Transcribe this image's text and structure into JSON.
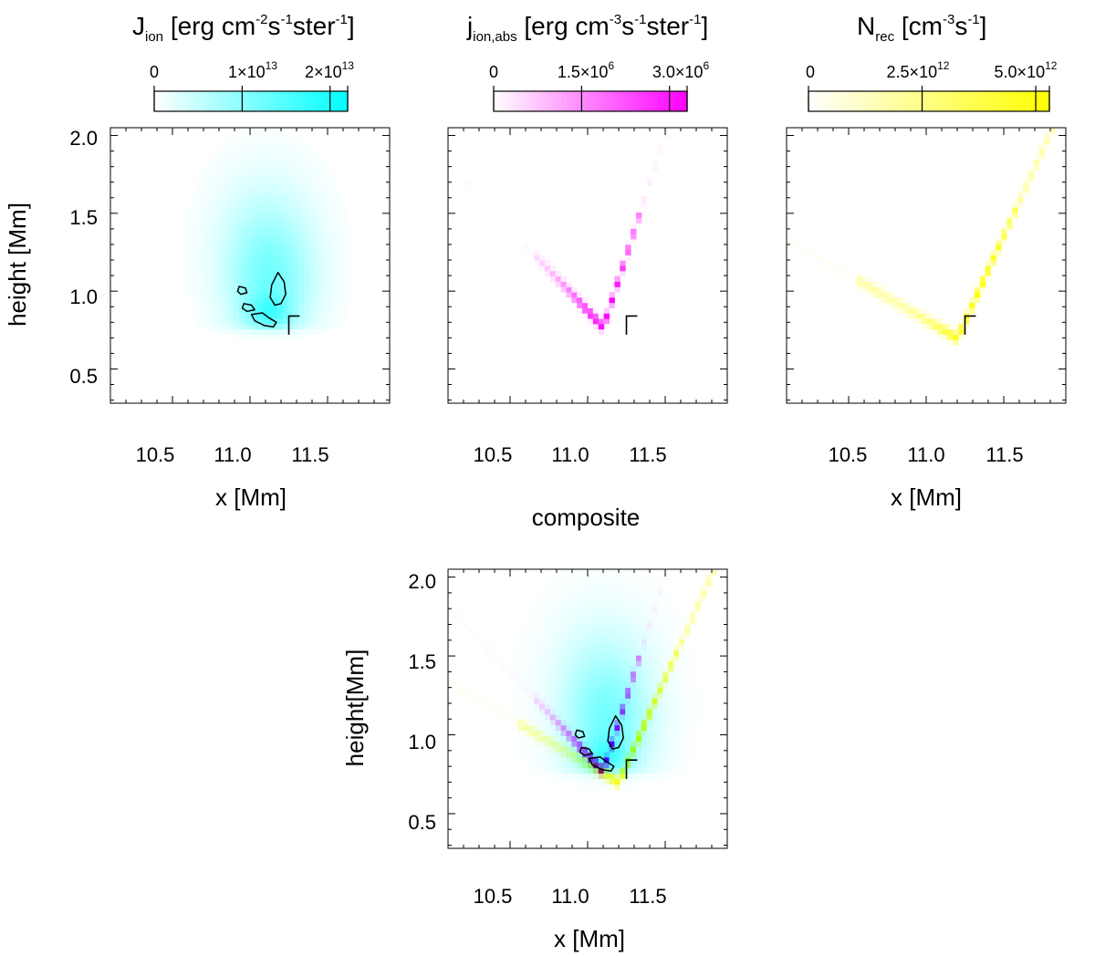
{
  "chart_data": [
    {
      "type": "heatmap",
      "id": "jion",
      "title": "J_ion [erg cm^-2 s^-1 ster^-1]",
      "title_parts": {
        "main": "J",
        "sub": "ion",
        "rest": "[erg cm",
        "e1": "-2",
        "s": "s",
        "e2": "-1",
        "ster": "ster",
        "e3": "-1",
        "close": "]"
      },
      "colormap": "cyan",
      "color": "#00ffff",
      "colorbar": {
        "vmin": 0,
        "vmax": 22000000000000.0,
        "ticks": [
          0,
          10000000000000.0,
          20000000000000.0
        ],
        "tick_labels": [
          {
            "text": "0",
            "exp": ""
          },
          {
            "text": "1×10",
            "exp": "13"
          },
          {
            "text": "2×10",
            "exp": "13"
          }
        ]
      },
      "xlabel": "x [Mm]",
      "ylabel": "height [Mm]",
      "xlim": [
        10.1,
        11.9
      ],
      "ylim": [
        0.28,
        2.05
      ],
      "xticks": [
        "10.5",
        "11.0",
        "11.5"
      ],
      "yticks": [
        "0.5",
        "1.0",
        "1.5",
        "2.0"
      ],
      "show_xlabel": true,
      "show_ylabel": true,
      "cells_summary": "diffuse cloud centered near x=11.1 Mm, height 0.8–1.8 Mm, peak ~1.5e13 near x=11.15, height 0.85",
      "contours": [
        {
          "name": "contour-upper",
          "points": [
            [
              11.18,
              1.12
            ],
            [
              11.22,
              1.06
            ],
            [
              11.23,
              0.98
            ],
            [
              11.2,
              0.92
            ],
            [
              11.16,
              0.91
            ],
            [
              11.13,
              0.96
            ],
            [
              11.14,
              1.04
            ]
          ]
        },
        {
          "name": "contour-small",
          "points": [
            [
              10.93,
              1.03
            ],
            [
              10.97,
              1.02
            ],
            [
              10.98,
              0.99
            ],
            [
              10.94,
              0.98
            ],
            [
              10.92,
              1.0
            ]
          ]
        },
        {
          "name": "contour-mid",
          "points": [
            [
              10.96,
              0.92
            ],
            [
              11.01,
              0.91
            ],
            [
              11.03,
              0.88
            ],
            [
              10.98,
              0.87
            ],
            [
              10.95,
              0.89
            ]
          ]
        },
        {
          "name": "contour-lower",
          "points": [
            [
              11.01,
              0.85
            ],
            [
              11.08,
              0.86
            ],
            [
              11.12,
              0.83
            ],
            [
              11.17,
              0.8
            ],
            [
              11.15,
              0.77
            ],
            [
              11.09,
              0.78
            ],
            [
              11.03,
              0.81
            ]
          ]
        }
      ],
      "marker": {
        "x": 11.25,
        "y": 0.84,
        "dx": 0.07,
        "dy": -0.12
      }
    },
    {
      "type": "heatmap",
      "id": "jabs",
      "title": "j_ion,abs [erg cm^-3 s^-1 ster^-1]",
      "title_parts": {
        "main": "j",
        "sub": "ion,abs",
        "rest": "[erg cm",
        "e1": "-3",
        "s": "s",
        "e2": "-1",
        "ster": "ster",
        "e3": "-1",
        "close": "]"
      },
      "colormap": "magenta",
      "color": "#ff00ff",
      "colorbar": {
        "vmin": 0,
        "vmax": 3300000.0,
        "ticks": [
          0,
          1500000.0,
          3000000.0
        ],
        "tick_labels": [
          {
            "text": "0",
            "exp": ""
          },
          {
            "text": "1.5×10",
            "exp": "6"
          },
          {
            "text": "3.0×10",
            "exp": "6"
          }
        ]
      },
      "xlabel": "",
      "ylabel": "",
      "xlim": [
        10.1,
        11.9
      ],
      "ylim": [
        0.28,
        2.05
      ],
      "xticks": [
        "10.5",
        "11.0",
        "11.5"
      ],
      "yticks": [
        "0.5",
        "1.0",
        "1.5",
        "2.0"
      ],
      "show_xlabel": false,
      "show_ylabel": false,
      "cells_summary": "U-shaped band from (10.7,1.25) down to (11.1,0.77) and up to (11.35,1.45), peak ~3e6 at x≈11.1, height≈0.78",
      "contours": [],
      "marker": {
        "x": 11.25,
        "y": 0.84,
        "dx": 0.07,
        "dy": -0.12
      }
    },
    {
      "type": "heatmap",
      "id": "nrec",
      "title": "N_rec [cm^-3 s^-1]",
      "title_parts": {
        "main": "N",
        "sub": "rec",
        "rest": "[cm",
        "e1": "-3",
        "s": "s",
        "e2": "-1",
        "ster": "",
        "e3": "",
        "close": "]"
      },
      "colormap": "yellow",
      "color": "#ffff00",
      "colorbar": {
        "vmin": 0,
        "vmax": 5300000000000.0,
        "ticks": [
          0,
          2500000000000.0,
          5000000000000.0
        ],
        "tick_labels": [
          {
            "text": "0",
            "exp": ""
          },
          {
            "text": "2.5×10",
            "exp": "12"
          },
          {
            "text": "5.0×10",
            "exp": "12"
          }
        ]
      },
      "xlabel": "x [Mm]",
      "ylabel": "",
      "xlim": [
        10.1,
        11.9
      ],
      "ylim": [
        0.28,
        2.05
      ],
      "xticks": [
        "10.5",
        "11.0",
        "11.5"
      ],
      "yticks": [
        "0.5",
        "1.0",
        "1.5",
        "2.0"
      ],
      "show_xlabel": true,
      "show_ylabel": false,
      "cells_summary": "V-shaped band from (10.6,1.05) down to (11.2,0.70) and up to (11.8,2.0), peak ~5e12 near x≈11.25, height≈0.75",
      "contours": [],
      "marker": {
        "x": 11.25,
        "y": 0.84,
        "dx": 0.07,
        "dy": -0.12
      }
    },
    {
      "type": "heatmap",
      "id": "composite",
      "title": "composite",
      "colormap": "composite",
      "xlabel": "x [Mm]",
      "ylabel": "height[Mm]",
      "xlim": [
        10.1,
        11.9
      ],
      "ylim": [
        0.28,
        2.05
      ],
      "xticks": [
        "10.5",
        "11.0",
        "11.5"
      ],
      "yticks": [
        "0.5",
        "1.0",
        "1.5",
        "2.0"
      ],
      "cells_summary": "overlay of cyan J_ion, magenta j_ion,abs and yellow N_rec",
      "contours": [
        {
          "name": "contour-upper",
          "points": [
            [
              11.18,
              1.12
            ],
            [
              11.22,
              1.06
            ],
            [
              11.23,
              0.98
            ],
            [
              11.2,
              0.92
            ],
            [
              11.16,
              0.91
            ],
            [
              11.13,
              0.96
            ],
            [
              11.14,
              1.04
            ]
          ]
        },
        {
          "name": "contour-small",
          "points": [
            [
              10.93,
              1.03
            ],
            [
              10.97,
              1.02
            ],
            [
              10.98,
              0.99
            ],
            [
              10.94,
              0.98
            ],
            [
              10.92,
              1.0
            ]
          ]
        },
        {
          "name": "contour-mid",
          "points": [
            [
              10.96,
              0.92
            ],
            [
              11.01,
              0.91
            ],
            [
              11.03,
              0.88
            ],
            [
              10.98,
              0.87
            ],
            [
              10.95,
              0.89
            ]
          ]
        },
        {
          "name": "contour-lower",
          "points": [
            [
              11.01,
              0.85
            ],
            [
              11.08,
              0.86
            ],
            [
              11.12,
              0.83
            ],
            [
              11.17,
              0.8
            ],
            [
              11.15,
              0.77
            ],
            [
              11.09,
              0.78
            ],
            [
              11.03,
              0.81
            ]
          ]
        }
      ],
      "marker": {
        "x": 11.25,
        "y": 0.84,
        "dx": 0.07,
        "dy": -0.12
      }
    }
  ]
}
